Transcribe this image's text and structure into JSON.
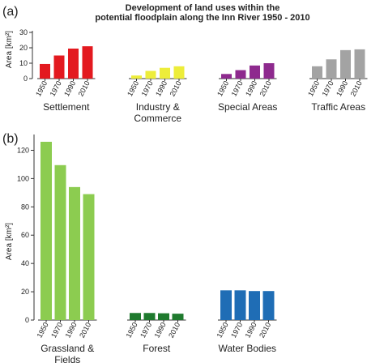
{
  "title_lines": [
    "Development of land uses within the",
    "potential floodplain along the Inn River 1950 - 2010"
  ],
  "chart_data": [
    {
      "type": "bar",
      "panel_label": "(a)",
      "ylabel": "Area [km²]",
      "ylim": [
        0,
        30
      ],
      "yticks": [
        "0",
        "10",
        "20",
        "30"
      ],
      "years": [
        "1950",
        "1970",
        "1990",
        "2010"
      ],
      "groups": [
        {
          "name": "Settlement",
          "label_lines": [
            "Settlement"
          ],
          "color": "#e3191f",
          "values": [
            9.5,
            15,
            19.5,
            21
          ]
        },
        {
          "name": "Industry & Commerce",
          "label_lines": [
            "Industry &",
            "Commerce"
          ],
          "color": "#eded3a",
          "values": [
            2,
            5,
            7,
            8
          ]
        },
        {
          "name": "Special Areas",
          "label_lines": [
            "Special Areas"
          ],
          "color": "#8e2a8e",
          "values": [
            3,
            5.5,
            8.5,
            10
          ]
        },
        {
          "name": "Traffic Areas",
          "label_lines": [
            "Traffic Areas"
          ],
          "color": "#a3a3a3",
          "values": [
            8,
            12.5,
            18.5,
            19
          ]
        }
      ]
    },
    {
      "type": "bar",
      "panel_label": "(b)",
      "ylabel": "Area [km²]",
      "ylim": [
        0,
        130
      ],
      "yticks": [
        "0",
        "20",
        "40",
        "60",
        "80",
        "100",
        "120"
      ],
      "years": [
        "1950",
        "1970",
        "1990",
        "2010"
      ],
      "groups": [
        {
          "name": "Grassland & Fields",
          "label_lines": [
            "Grassland &",
            "Fields"
          ],
          "color": "#8ccc50",
          "values": [
            126,
            109.5,
            94,
            89
          ]
        },
        {
          "name": "Forest",
          "label_lines": [
            "Forest"
          ],
          "color": "#1f7a2e",
          "values": [
            5,
            5,
            4.8,
            4.5
          ]
        },
        {
          "name": "Water Bodies",
          "label_lines": [
            "Water Bodies"
          ],
          "color": "#1f6db5",
          "values": [
            21,
            21,
            20.5,
            20.5
          ]
        }
      ]
    }
  ]
}
